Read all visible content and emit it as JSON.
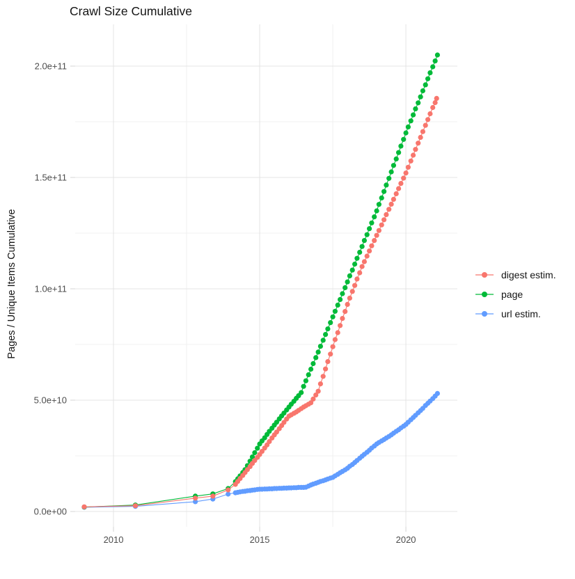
{
  "chart_data": {
    "type": "scatter",
    "title": "Crawl Size Cumulative",
    "xlabel": "",
    "ylabel": "Pages / Unique Items Cumulative",
    "legend_position": "right-center",
    "grid": true,
    "background": "#ffffff",
    "xlim": [
      2008.69,
      2021.76
    ],
    "ylim": [
      0,
      218750000000.0
    ],
    "x_ticks": {
      "values": [
        2010,
        2015,
        2020
      ],
      "labels": [
        "2010",
        "2015",
        "2020"
      ]
    },
    "x_minor_ticks": [
      2012.5,
      2017.5
    ],
    "y_ticks": {
      "values": [
        0,
        50000000000.0,
        100000000000.0,
        150000000000.0,
        200000000000.0
      ],
      "labels": [
        "0.0e+00",
        "5.0e+10",
        "1.0e+11",
        "1.5e+11",
        "2.0e+11"
      ]
    },
    "y_minor_ticks": [
      25000000000.0,
      75000000000.0,
      125000000000.0,
      175000000000.0
    ],
    "value_multiplier": 1000000000.0,
    "value_unit": "pages / unique items (billions)",
    "series": [
      {
        "name": "digest estim.",
        "color": "#F8766D",
        "points": [
          [
            2009.0,
            2.1
          ],
          [
            2010.75,
            2.6
          ],
          [
            2012.8,
            6.0
          ],
          [
            2013.4,
            6.9
          ],
          [
            2013.92,
            9.7
          ],
          [
            2014.17,
            12.2
          ],
          [
            2014.25,
            13.5
          ],
          [
            2014.33,
            14.8
          ],
          [
            2014.42,
            16.2
          ],
          [
            2014.5,
            17.5
          ],
          [
            2014.58,
            18.8
          ],
          [
            2014.67,
            20.2
          ],
          [
            2014.75,
            21.6
          ],
          [
            2014.83,
            22.9
          ],
          [
            2014.92,
            24.3
          ],
          [
            2015.0,
            25.6
          ],
          [
            2015.08,
            27.0
          ],
          [
            2015.17,
            28.5
          ],
          [
            2015.25,
            29.9
          ],
          [
            2015.33,
            31.4
          ],
          [
            2015.42,
            33.0
          ],
          [
            2015.5,
            34.4
          ],
          [
            2015.58,
            35.7
          ],
          [
            2015.67,
            37.2
          ],
          [
            2015.75,
            38.6
          ],
          [
            2015.83,
            40.0
          ],
          [
            2015.92,
            41.5
          ],
          [
            2016.0,
            42.8
          ],
          [
            2016.08,
            43.4
          ],
          [
            2016.17,
            44.1
          ],
          [
            2016.25,
            44.7
          ],
          [
            2016.33,
            45.4
          ],
          [
            2016.42,
            46.2
          ],
          [
            2016.5,
            46.9
          ],
          [
            2016.58,
            47.5
          ],
          [
            2016.67,
            48.2
          ],
          [
            2016.75,
            48.8
          ],
          [
            2016.83,
            50.5
          ],
          [
            2016.92,
            52.3
          ],
          [
            2017.0,
            54.0
          ],
          [
            2017.08,
            57.3
          ],
          [
            2017.17,
            60.7
          ],
          [
            2017.25,
            64.0
          ],
          [
            2017.33,
            67.3
          ],
          [
            2017.42,
            70.7
          ],
          [
            2017.5,
            74.0
          ],
          [
            2017.58,
            77.2
          ],
          [
            2017.67,
            80.3
          ],
          [
            2017.75,
            83.5
          ],
          [
            2017.83,
            86.7
          ],
          [
            2017.92,
            89.8
          ],
          [
            2018.0,
            93.0
          ],
          [
            2018.08,
            95.8
          ],
          [
            2018.17,
            98.8
          ],
          [
            2018.25,
            101.5
          ],
          [
            2018.33,
            104.4
          ],
          [
            2018.42,
            107.2
          ],
          [
            2018.5,
            110.0
          ],
          [
            2018.58,
            112.2
          ],
          [
            2018.67,
            114.7
          ],
          [
            2018.75,
            117.0
          ],
          [
            2018.83,
            119.3
          ],
          [
            2018.92,
            121.7
          ],
          [
            2019.0,
            124.0
          ],
          [
            2019.08,
            126.2
          ],
          [
            2019.17,
            128.7
          ],
          [
            2019.25,
            131.0
          ],
          [
            2019.33,
            133.3
          ],
          [
            2019.42,
            135.7
          ],
          [
            2019.5,
            138.0
          ],
          [
            2019.58,
            140.2
          ],
          [
            2019.67,
            142.7
          ],
          [
            2019.75,
            145.0
          ],
          [
            2019.83,
            147.3
          ],
          [
            2019.92,
            149.7
          ],
          [
            2020.0,
            152.0
          ],
          [
            2020.08,
            154.6
          ],
          [
            2020.17,
            157.4
          ],
          [
            2020.25,
            160.0
          ],
          [
            2020.33,
            162.6
          ],
          [
            2020.42,
            165.4
          ],
          [
            2020.5,
            168.0
          ],
          [
            2020.58,
            170.6
          ],
          [
            2020.67,
            173.4
          ],
          [
            2020.75,
            176.0
          ],
          [
            2020.83,
            178.6
          ],
          [
            2020.92,
            181.4
          ],
          [
            2021.0,
            183.6
          ],
          [
            2021.05,
            185.5
          ]
        ]
      },
      {
        "name": "page",
        "color": "#00BA38",
        "points": [
          [
            2009.0,
            2.0
          ],
          [
            2010.75,
            2.9
          ],
          [
            2012.8,
            6.9
          ],
          [
            2013.4,
            7.9
          ],
          [
            2013.92,
            10.3
          ],
          [
            2014.17,
            13.4
          ],
          [
            2014.25,
            14.7
          ],
          [
            2014.33,
            16.0
          ],
          [
            2014.42,
            17.5
          ],
          [
            2014.5,
            18.8
          ],
          [
            2014.58,
            20.6
          ],
          [
            2014.67,
            22.6
          ],
          [
            2014.75,
            24.5
          ],
          [
            2014.83,
            26.4
          ],
          [
            2014.92,
            28.4
          ],
          [
            2015.0,
            30.3
          ],
          [
            2015.08,
            31.7
          ],
          [
            2015.17,
            33.1
          ],
          [
            2015.25,
            34.6
          ],
          [
            2015.33,
            36.0
          ],
          [
            2015.42,
            37.4
          ],
          [
            2015.5,
            38.8
          ],
          [
            2015.58,
            40.1
          ],
          [
            2015.67,
            41.6
          ],
          [
            2015.75,
            42.9
          ],
          [
            2015.83,
            44.2
          ],
          [
            2015.92,
            45.6
          ],
          [
            2016.0,
            46.9
          ],
          [
            2016.08,
            48.2
          ],
          [
            2016.17,
            49.5
          ],
          [
            2016.25,
            50.8
          ],
          [
            2016.33,
            52.0
          ],
          [
            2016.42,
            53.4
          ],
          [
            2016.5,
            56.2
          ],
          [
            2016.58,
            58.7
          ],
          [
            2016.67,
            61.4
          ],
          [
            2016.75,
            63.9
          ],
          [
            2016.83,
            66.4
          ],
          [
            2016.92,
            69.1
          ],
          [
            2017.0,
            71.6
          ],
          [
            2017.08,
            74.2
          ],
          [
            2017.17,
            76.9
          ],
          [
            2017.25,
            79.5
          ],
          [
            2017.33,
            82.0
          ],
          [
            2017.42,
            84.8
          ],
          [
            2017.5,
            87.4
          ],
          [
            2017.58,
            89.9
          ],
          [
            2017.67,
            92.7
          ],
          [
            2017.75,
            95.2
          ],
          [
            2017.83,
            97.8
          ],
          [
            2017.92,
            100.5
          ],
          [
            2018.0,
            103.1
          ],
          [
            2018.08,
            105.8
          ],
          [
            2018.17,
            108.4
          ],
          [
            2018.25,
            111.1
          ],
          [
            2018.33,
            113.7
          ],
          [
            2018.42,
            116.4
          ],
          [
            2018.5,
            119.0
          ],
          [
            2018.58,
            121.7
          ],
          [
            2018.67,
            124.3
          ],
          [
            2018.75,
            127.0
          ],
          [
            2018.83,
            129.6
          ],
          [
            2018.92,
            132.3
          ],
          [
            2019.0,
            135.0
          ],
          [
            2019.08,
            137.9
          ],
          [
            2019.17,
            140.8
          ],
          [
            2019.25,
            143.7
          ],
          [
            2019.33,
            146.6
          ],
          [
            2019.42,
            149.6
          ],
          [
            2019.5,
            152.5
          ],
          [
            2019.58,
            155.4
          ],
          [
            2019.67,
            158.3
          ],
          [
            2019.75,
            161.2
          ],
          [
            2019.83,
            164.1
          ],
          [
            2019.92,
            167.1
          ],
          [
            2020.0,
            170.0
          ],
          [
            2020.08,
            172.7
          ],
          [
            2020.17,
            175.4
          ],
          [
            2020.25,
            178.1
          ],
          [
            2020.33,
            180.8
          ],
          [
            2020.42,
            183.5
          ],
          [
            2020.5,
            186.2
          ],
          [
            2020.58,
            188.9
          ],
          [
            2020.67,
            191.6
          ],
          [
            2020.75,
            194.3
          ],
          [
            2020.83,
            197.0
          ],
          [
            2020.92,
            199.7
          ],
          [
            2021.0,
            202.3
          ],
          [
            2021.08,
            205.0
          ]
        ]
      },
      {
        "name": "url estim.",
        "color": "#619CFF",
        "points": [
          [
            2009.0,
            1.9
          ],
          [
            2010.75,
            2.3
          ],
          [
            2012.8,
            4.4
          ],
          [
            2013.4,
            5.6
          ],
          [
            2013.92,
            7.8
          ],
          [
            2014.17,
            8.4
          ],
          [
            2014.25,
            8.6
          ],
          [
            2014.33,
            8.8
          ],
          [
            2014.42,
            9.0
          ],
          [
            2014.5,
            9.1
          ],
          [
            2014.58,
            9.3
          ],
          [
            2014.67,
            9.4
          ],
          [
            2014.75,
            9.6
          ],
          [
            2014.83,
            9.7
          ],
          [
            2014.92,
            9.9
          ],
          [
            2015.0,
            10.0
          ],
          [
            2015.08,
            10.0
          ],
          [
            2015.17,
            10.1
          ],
          [
            2015.25,
            10.1
          ],
          [
            2015.33,
            10.2
          ],
          [
            2015.42,
            10.2
          ],
          [
            2015.5,
            10.3
          ],
          [
            2015.58,
            10.3
          ],
          [
            2015.67,
            10.4
          ],
          [
            2015.75,
            10.4
          ],
          [
            2015.83,
            10.5
          ],
          [
            2015.92,
            10.5
          ],
          [
            2016.0,
            10.6
          ],
          [
            2016.08,
            10.6
          ],
          [
            2016.17,
            10.7
          ],
          [
            2016.25,
            10.7
          ],
          [
            2016.33,
            10.8
          ],
          [
            2016.42,
            10.8
          ],
          [
            2016.5,
            10.8
          ],
          [
            2016.58,
            10.9
          ],
          [
            2016.67,
            11.4
          ],
          [
            2016.75,
            11.9
          ],
          [
            2016.83,
            12.3
          ],
          [
            2016.92,
            12.7
          ],
          [
            2017.0,
            13.1
          ],
          [
            2017.08,
            13.5
          ],
          [
            2017.17,
            13.8
          ],
          [
            2017.25,
            14.2
          ],
          [
            2017.33,
            14.6
          ],
          [
            2017.42,
            15.0
          ],
          [
            2017.5,
            15.3
          ],
          [
            2017.58,
            16.0
          ],
          [
            2017.67,
            16.7
          ],
          [
            2017.75,
            17.4
          ],
          [
            2017.83,
            18.0
          ],
          [
            2017.92,
            18.7
          ],
          [
            2018.0,
            19.4
          ],
          [
            2018.08,
            20.3
          ],
          [
            2018.17,
            21.1
          ],
          [
            2018.25,
            22.0
          ],
          [
            2018.33,
            22.9
          ],
          [
            2018.42,
            23.9
          ],
          [
            2018.5,
            24.8
          ],
          [
            2018.58,
            25.7
          ],
          [
            2018.67,
            26.6
          ],
          [
            2018.75,
            27.5
          ],
          [
            2018.83,
            28.5
          ],
          [
            2018.92,
            29.4
          ],
          [
            2019.0,
            30.3
          ],
          [
            2019.08,
            31.0
          ],
          [
            2019.17,
            31.7
          ],
          [
            2019.25,
            32.3
          ],
          [
            2019.33,
            33.0
          ],
          [
            2019.42,
            33.7
          ],
          [
            2019.5,
            34.4
          ],
          [
            2019.58,
            35.2
          ],
          [
            2019.67,
            36.0
          ],
          [
            2019.75,
            36.7
          ],
          [
            2019.83,
            37.5
          ],
          [
            2019.92,
            38.3
          ],
          [
            2020.0,
            39.1
          ],
          [
            2020.08,
            40.1
          ],
          [
            2020.17,
            41.2
          ],
          [
            2020.25,
            42.2
          ],
          [
            2020.33,
            43.2
          ],
          [
            2020.42,
            44.3
          ],
          [
            2020.5,
            45.3
          ],
          [
            2020.58,
            46.3
          ],
          [
            2020.67,
            47.6
          ],
          [
            2020.75,
            48.6
          ],
          [
            2020.83,
            49.6
          ],
          [
            2020.92,
            50.7
          ],
          [
            2021.0,
            51.8
          ],
          [
            2021.08,
            53.0
          ]
        ]
      }
    ]
  }
}
